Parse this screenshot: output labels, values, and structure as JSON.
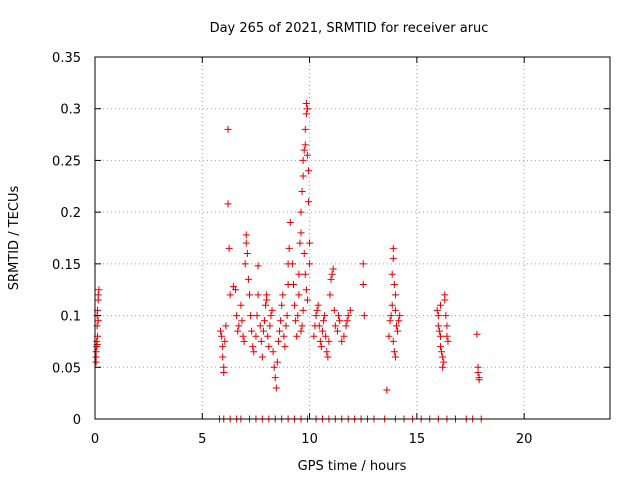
{
  "chart_data": {
    "type": "scatter",
    "title": "Day 265 of 2021, SRMTID for receiver aruc",
    "xlabel": "GPS time / hours",
    "ylabel": "SRMTID / TECUs",
    "xlim": [
      0,
      24
    ],
    "ylim": [
      0,
      0.35
    ],
    "xticks": [
      0,
      5,
      10,
      15,
      20
    ],
    "xtick_labels": [
      "0",
      "5",
      "10",
      "15",
      "20"
    ],
    "yticks": [
      0,
      0.05,
      0.1,
      0.15,
      0.2,
      0.25,
      0.3,
      0.35
    ],
    "ytick_labels": [
      "0",
      "0.05",
      "0.1",
      "0.15",
      "0.2",
      "0.25",
      "0.3",
      "0.35"
    ],
    "grid": true,
    "marker": "+",
    "color": "#e00000",
    "series": [
      {
        "name": "SRMTID",
        "points": [
          [
            0.05,
            0.055
          ],
          [
            0.05,
            0.06
          ],
          [
            0.05,
            0.065
          ],
          [
            0.08,
            0.07
          ],
          [
            0.08,
            0.075
          ],
          [
            0.1,
            0.09
          ],
          [
            0.1,
            0.1
          ],
          [
            0.12,
            0.105
          ],
          [
            0.15,
            0.115
          ],
          [
            0.15,
            0.12
          ],
          [
            0.18,
            0.125
          ],
          [
            0.12,
            0.08
          ],
          [
            0.1,
            0.072
          ],
          [
            0.15,
            0.095
          ],
          [
            5.85,
            0.085
          ],
          [
            5.9,
            0.08
          ],
          [
            5.95,
            0.07
          ],
          [
            5.95,
            0.06
          ],
          [
            6.0,
            0.05
          ],
          [
            6.0,
            0.045
          ],
          [
            6.05,
            0.075
          ],
          [
            6.1,
            0.09
          ],
          [
            6.2,
            0.28
          ],
          [
            6.2,
            0.208
          ],
          [
            6.25,
            0.165
          ],
          [
            6.3,
            0.12
          ],
          [
            6.45,
            0.128
          ],
          [
            6.55,
            0.125
          ],
          [
            6.6,
            0.1
          ],
          [
            6.65,
            0.085
          ],
          [
            6.7,
            0.09
          ],
          [
            6.8,
            0.11
          ],
          [
            6.85,
            0.095
          ],
          [
            6.9,
            0.08
          ],
          [
            6.95,
            0.075
          ],
          [
            7.0,
            0.15
          ],
          [
            7.05,
            0.17
          ],
          [
            7.05,
            0.178
          ],
          [
            7.1,
            0.16
          ],
          [
            7.15,
            0.135
          ],
          [
            7.2,
            0.12
          ],
          [
            7.25,
            0.1
          ],
          [
            7.3,
            0.085
          ],
          [
            7.35,
            0.07
          ],
          [
            7.4,
            0.065
          ],
          [
            7.5,
            0.08
          ],
          [
            7.55,
            0.1
          ],
          [
            7.6,
            0.12
          ],
          [
            7.6,
            0.148
          ],
          [
            7.7,
            0.09
          ],
          [
            7.75,
            0.075
          ],
          [
            7.8,
            0.06
          ],
          [
            7.85,
            0.085
          ],
          [
            7.9,
            0.095
          ],
          [
            7.95,
            0.11
          ],
          [
            8.0,
            0.115
          ],
          [
            8.0,
            0.12
          ],
          [
            8.05,
            0.08
          ],
          [
            8.1,
            0.07
          ],
          [
            8.15,
            0.09
          ],
          [
            8.2,
            0.1
          ],
          [
            8.25,
            0.105
          ],
          [
            8.3,
            0.065
          ],
          [
            8.35,
            0.05
          ],
          [
            8.4,
            0.04
          ],
          [
            8.45,
            0.03
          ],
          [
            8.5,
            0.055
          ],
          [
            8.55,
            0.075
          ],
          [
            8.6,
            0.085
          ],
          [
            8.65,
            0.095
          ],
          [
            8.7,
            0.11
          ],
          [
            8.75,
            0.12
          ],
          [
            8.8,
            0.08
          ],
          [
            8.85,
            0.07
          ],
          [
            8.9,
            0.09
          ],
          [
            8.95,
            0.1
          ],
          [
            9.0,
            0.13
          ],
          [
            9.0,
            0.15
          ],
          [
            9.05,
            0.165
          ],
          [
            9.1,
            0.19
          ],
          [
            9.2,
            0.15
          ],
          [
            9.25,
            0.13
          ],
          [
            9.3,
            0.11
          ],
          [
            9.35,
            0.095
          ],
          [
            9.4,
            0.08
          ],
          [
            9.45,
            0.1
          ],
          [
            9.5,
            0.12
          ],
          [
            9.5,
            0.14
          ],
          [
            9.55,
            0.17
          ],
          [
            9.6,
            0.18
          ],
          [
            9.6,
            0.2
          ],
          [
            9.65,
            0.22
          ],
          [
            9.7,
            0.235
          ],
          [
            9.7,
            0.25
          ],
          [
            9.75,
            0.26
          ],
          [
            9.8,
            0.265
          ],
          [
            9.8,
            0.28
          ],
          [
            9.85,
            0.295
          ],
          [
            9.85,
            0.305
          ],
          [
            9.9,
            0.3
          ],
          [
            9.9,
            0.255
          ],
          [
            9.95,
            0.24
          ],
          [
            9.95,
            0.21
          ],
          [
            10.0,
            0.17
          ],
          [
            10.0,
            0.15
          ],
          [
            9.75,
            0.16
          ],
          [
            9.8,
            0.14
          ],
          [
            9.85,
            0.125
          ],
          [
            9.9,
            0.115
          ],
          [
            9.7,
            0.105
          ],
          [
            9.65,
            0.09
          ],
          [
            9.6,
            0.085
          ],
          [
            10.2,
            0.08
          ],
          [
            10.25,
            0.09
          ],
          [
            10.3,
            0.1
          ],
          [
            10.35,
            0.105
          ],
          [
            10.4,
            0.11
          ],
          [
            10.45,
            0.09
          ],
          [
            10.5,
            0.075
          ],
          [
            10.55,
            0.07
          ],
          [
            10.6,
            0.085
          ],
          [
            10.65,
            0.095
          ],
          [
            10.7,
            0.1
          ],
          [
            10.75,
            0.08
          ],
          [
            10.8,
            0.065
          ],
          [
            10.85,
            0.06
          ],
          [
            10.9,
            0.075
          ],
          [
            10.95,
            0.12
          ],
          [
            11.0,
            0.135
          ],
          [
            11.05,
            0.14
          ],
          [
            11.1,
            0.145
          ],
          [
            11.15,
            0.105
          ],
          [
            11.2,
            0.09
          ],
          [
            11.3,
            0.085
          ],
          [
            11.35,
            0.1
          ],
          [
            11.4,
            0.095
          ],
          [
            11.5,
            0.075
          ],
          [
            11.6,
            0.08
          ],
          [
            11.7,
            0.09
          ],
          [
            11.75,
            0.095
          ],
          [
            11.8,
            0.1
          ],
          [
            11.9,
            0.105
          ],
          [
            12.5,
            0.15
          ],
          [
            12.5,
            0.13
          ],
          [
            12.55,
            0.1
          ],
          [
            13.6,
            0.028
          ],
          [
            13.7,
            0.08
          ],
          [
            13.75,
            0.095
          ],
          [
            13.8,
            0.1
          ],
          [
            13.85,
            0.11
          ],
          [
            13.85,
            0.14
          ],
          [
            13.9,
            0.165
          ],
          [
            13.9,
            0.155
          ],
          [
            13.95,
            0.13
          ],
          [
            14.0,
            0.12
          ],
          [
            14.0,
            0.105
          ],
          [
            14.05,
            0.09
          ],
          [
            14.1,
            0.085
          ],
          [
            14.15,
            0.095
          ],
          [
            14.2,
            0.1
          ],
          [
            13.9,
            0.075
          ],
          [
            13.95,
            0.065
          ],
          [
            14.0,
            0.06
          ],
          [
            15.95,
            0.105
          ],
          [
            16.0,
            0.1
          ],
          [
            16.0,
            0.09
          ],
          [
            16.05,
            0.085
          ],
          [
            16.1,
            0.08
          ],
          [
            16.1,
            0.07
          ],
          [
            16.15,
            0.065
          ],
          [
            16.2,
            0.06
          ],
          [
            16.2,
            0.05
          ],
          [
            16.25,
            0.055
          ],
          [
            16.3,
            0.115
          ],
          [
            16.3,
            0.12
          ],
          [
            16.35,
            0.1
          ],
          [
            16.4,
            0.09
          ],
          [
            16.4,
            0.08
          ],
          [
            16.45,
            0.075
          ],
          [
            16.1,
            0.11
          ],
          [
            17.8,
            0.082
          ],
          [
            17.85,
            0.05
          ],
          [
            17.85,
            0.045
          ],
          [
            17.9,
            0.04
          ],
          [
            17.9,
            0.038
          ],
          [
            5.8,
            0.0
          ],
          [
            6.0,
            0.0
          ],
          [
            6.3,
            0.0
          ],
          [
            6.6,
            0.0
          ],
          [
            6.8,
            0.0
          ],
          [
            7.2,
            0.0
          ],
          [
            7.5,
            0.0
          ],
          [
            7.8,
            0.0
          ],
          [
            8.1,
            0.0
          ],
          [
            8.4,
            0.0
          ],
          [
            8.7,
            0.0
          ],
          [
            9.0,
            0.0
          ],
          [
            9.3,
            0.0
          ],
          [
            9.6,
            0.0
          ],
          [
            9.9,
            0.0
          ],
          [
            10.3,
            0.0
          ],
          [
            10.6,
            0.0
          ],
          [
            10.9,
            0.0
          ],
          [
            11.2,
            0.0
          ],
          [
            11.5,
            0.0
          ],
          [
            11.8,
            0.0
          ],
          [
            12.1,
            0.0
          ],
          [
            12.4,
            0.0
          ],
          [
            12.7,
            0.0
          ],
          [
            13.0,
            0.0
          ],
          [
            13.5,
            0.0
          ],
          [
            14.0,
            0.0
          ],
          [
            14.4,
            0.0
          ],
          [
            14.8,
            0.0
          ],
          [
            15.2,
            0.0
          ],
          [
            15.6,
            0.0
          ],
          [
            16.0,
            0.0
          ],
          [
            16.4,
            0.0
          ],
          [
            16.8,
            0.0
          ],
          [
            17.3,
            0.0
          ],
          [
            17.6,
            0.0
          ],
          [
            18.0,
            0.0
          ]
        ]
      }
    ]
  }
}
